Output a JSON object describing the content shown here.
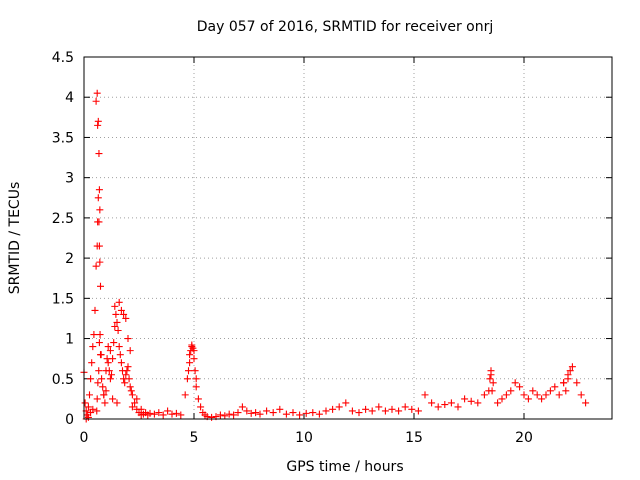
{
  "chart_data": {
    "type": "scatter",
    "title": "Day 057 of 2016, SRMTID for receiver onrj",
    "xlabel": "GPS time / hours",
    "ylabel": "SRMTID / TECUs",
    "xlim": [
      0,
      24
    ],
    "ylim": [
      0,
      4.5
    ],
    "xticks": [
      0,
      5,
      10,
      15,
      20
    ],
    "xtick_labels": [
      "0",
      "5",
      "10",
      "15",
      "20"
    ],
    "yticks": [
      0,
      0.5,
      1,
      1.5,
      2,
      2.5,
      3,
      3.5,
      4,
      4.5
    ],
    "ytick_labels": [
      "0",
      "0.5",
      "1",
      "1.5",
      "2",
      "2.5",
      "3",
      "3.5",
      "4",
      "4.5"
    ],
    "grid": true,
    "marker": "+",
    "marker_color": "#ff0000",
    "series": [
      {
        "name": "onrj",
        "x": [
          0.0,
          0.05,
          0.1,
          0.15,
          0.2,
          0.25,
          0.3,
          0.35,
          0.4,
          0.45,
          0.5,
          0.55,
          0.6,
          0.62,
          0.65,
          0.68,
          0.7,
          0.72,
          0.75,
          0.78,
          0.8,
          0.85,
          0.9,
          0.95,
          1.0,
          1.05,
          1.1,
          1.15,
          1.2,
          1.25,
          1.3,
          1.35,
          1.4,
          1.45,
          1.5,
          1.55,
          1.6,
          1.65,
          1.7,
          1.75,
          1.8,
          1.85,
          1.9,
          1.95,
          2.0,
          2.05,
          2.1,
          2.15,
          2.2,
          2.3,
          2.4,
          2.5,
          2.6,
          2.7,
          2.8,
          2.9,
          3.0,
          3.2,
          3.4,
          3.6,
          3.8,
          4.0,
          4.2,
          4.4,
          4.6,
          4.7,
          4.8,
          4.85,
          4.9,
          4.95,
          5.0,
          5.05,
          5.1,
          5.2,
          5.3,
          5.4,
          5.5,
          5.6,
          5.8,
          6.0,
          6.2,
          6.4,
          6.6,
          6.8,
          7.0,
          7.2,
          7.4,
          7.6,
          7.8,
          8.0,
          8.3,
          8.6,
          8.9,
          9.2,
          9.5,
          9.8,
          10.1,
          10.4,
          10.7,
          11.0,
          11.3,
          11.6,
          11.9,
          12.2,
          12.5,
          12.8,
          13.1,
          13.4,
          13.7,
          14.0,
          14.3,
          14.6,
          14.9,
          15.2,
          15.5,
          15.8,
          16.1,
          16.4,
          16.7,
          17.0,
          17.3,
          17.6,
          17.9,
          18.2,
          18.4,
          18.5,
          18.6,
          18.8,
          19.0,
          19.2,
          19.4,
          19.6,
          19.8,
          20.0,
          20.2,
          20.4,
          20.6,
          20.8,
          21.0,
          21.2,
          21.4,
          21.6,
          21.8,
          22.0,
          22.1,
          22.2,
          22.4,
          22.6,
          22.8,
          0.55,
          0.6,
          0.62,
          0.65,
          0.68,
          0.7,
          0.72,
          0.58,
          0.6,
          0.63,
          0.67,
          0.7,
          0.73,
          0.75,
          1.1,
          1.2,
          1.4,
          1.6,
          1.7,
          1.8,
          1.9,
          2.0,
          2.1,
          0.1,
          0.2,
          0.3,
          0.4,
          0.9,
          1.0,
          1.3,
          1.5,
          2.2,
          2.4,
          2.6,
          4.75,
          4.8,
          4.9,
          5.0,
          5.1,
          18.45,
          18.5,
          18.55,
          21.8,
          21.9,
          22.0
        ],
        "y": [
          0.58,
          0.2,
          0.1,
          0.05,
          0.15,
          0.3,
          0.5,
          0.7,
          0.9,
          1.05,
          1.35,
          1.9,
          2.15,
          2.45,
          2.75,
          2.45,
          2.15,
          1.95,
          1.65,
          0.8,
          0.5,
          0.4,
          0.3,
          0.2,
          0.6,
          0.75,
          0.7,
          0.6,
          0.5,
          0.55,
          0.75,
          0.95,
          1.15,
          1.3,
          1.2,
          1.1,
          0.9,
          0.8,
          0.7,
          0.6,
          0.5,
          0.45,
          0.55,
          0.6,
          0.65,
          0.5,
          0.4,
          0.35,
          0.3,
          0.2,
          0.12,
          0.08,
          0.05,
          0.06,
          0.08,
          0.05,
          0.07,
          0.06,
          0.08,
          0.05,
          0.1,
          0.06,
          0.07,
          0.05,
          0.3,
          0.5,
          0.7,
          0.85,
          0.92,
          0.88,
          0.75,
          0.6,
          0.4,
          0.25,
          0.15,
          0.08,
          0.05,
          0.03,
          0.02,
          0.03,
          0.05,
          0.04,
          0.06,
          0.05,
          0.08,
          0.15,
          0.1,
          0.07,
          0.08,
          0.06,
          0.1,
          0.08,
          0.12,
          0.06,
          0.08,
          0.05,
          0.07,
          0.08,
          0.06,
          0.1,
          0.12,
          0.15,
          0.2,
          0.1,
          0.08,
          0.12,
          0.1,
          0.15,
          0.1,
          0.12,
          0.1,
          0.15,
          0.12,
          0.1,
          0.3,
          0.2,
          0.15,
          0.18,
          0.2,
          0.15,
          0.25,
          0.22,
          0.2,
          0.3,
          0.35,
          0.6,
          0.45,
          0.2,
          0.25,
          0.3,
          0.35,
          0.45,
          0.4,
          0.3,
          0.25,
          0.35,
          0.3,
          0.25,
          0.3,
          0.35,
          0.4,
          0.3,
          0.45,
          0.5,
          0.6,
          0.65,
          0.45,
          0.3,
          0.2,
          3.95,
          4.05,
          3.65,
          3.7,
          3.3,
          2.85,
          2.6,
          0.1,
          0.25,
          0.45,
          0.6,
          0.95,
          1.05,
          0.8,
          0.9,
          0.85,
          1.4,
          1.45,
          1.35,
          1.3,
          1.25,
          1.0,
          0.85,
          0.0,
          0.02,
          0.08,
          0.12,
          0.3,
          0.35,
          0.25,
          0.2,
          0.15,
          0.25,
          0.12,
          0.6,
          0.8,
          0.9,
          0.85,
          0.5,
          0.5,
          0.55,
          0.35,
          0.45,
          0.35,
          0.55
        ]
      }
    ]
  }
}
